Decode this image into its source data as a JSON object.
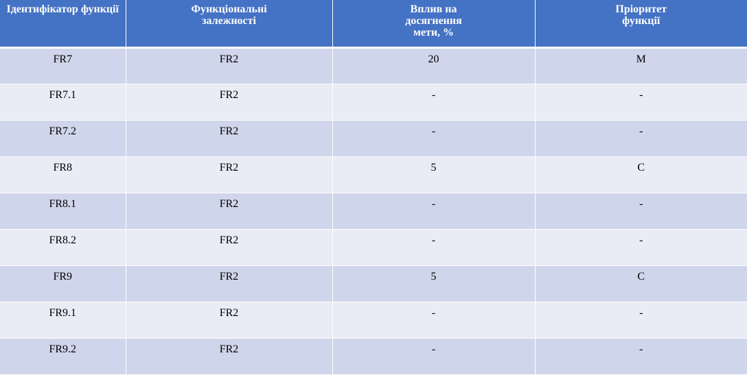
{
  "table": {
    "headers": [
      "Ідентифікатор функції",
      "Функціональні залежності",
      "Вплив на досягнення мети, %",
      "Пріоритет функції"
    ],
    "rows": [
      [
        "FR7",
        "FR2",
        "20",
        "M"
      ],
      [
        "FR7.1",
        "FR2",
        "-",
        "-"
      ],
      [
        "FR7.2",
        "FR2",
        "-",
        "-"
      ],
      [
        "FR8",
        "FR2",
        "5",
        "C"
      ],
      [
        "FR8.1",
        "FR2",
        "-",
        "-"
      ],
      [
        "FR8.2",
        "FR2",
        "-",
        "-"
      ],
      [
        "FR9",
        "FR2",
        "5",
        "C"
      ],
      [
        "FR9.1",
        "FR2",
        "-",
        "-"
      ],
      [
        "FR9.2",
        "FR2",
        "-",
        "-"
      ]
    ]
  },
  "colors": {
    "header_bg": "#4472c4",
    "row_band_dark": "#cfd5ea",
    "row_band_light": "#e9ebf5"
  }
}
